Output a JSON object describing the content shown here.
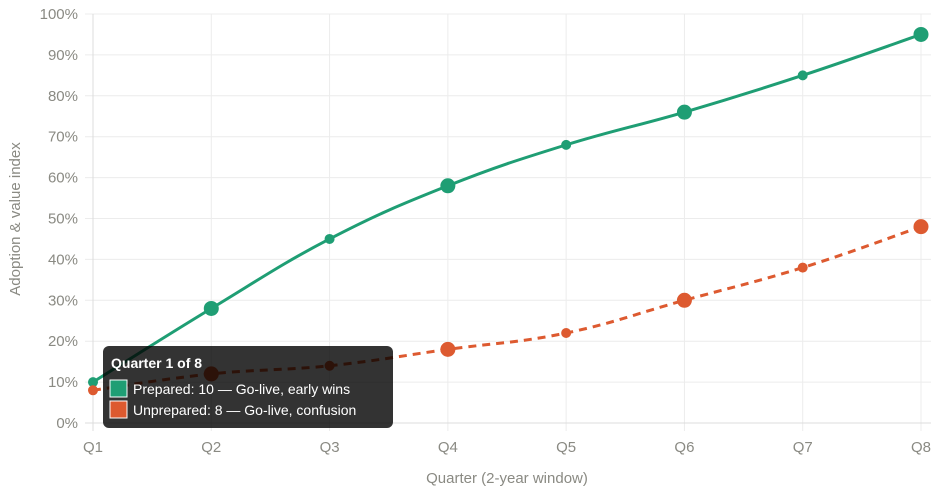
{
  "chart_data": {
    "type": "line",
    "xlabel": "Quarter (2-year window)",
    "ylabel": "Adoption & value index",
    "categories": [
      "Q1",
      "Q2",
      "Q3",
      "Q4",
      "Q5",
      "Q6",
      "Q7",
      "Q8"
    ],
    "ylim": [
      0,
      100
    ],
    "yticks": [
      "0%",
      "10%",
      "20%",
      "30%",
      "40%",
      "50%",
      "60%",
      "70%",
      "80%",
      "90%",
      "100%"
    ],
    "grid": true,
    "series": [
      {
        "name": "Prepared",
        "color": "#1f9e74",
        "dashed": false,
        "values": [
          10,
          28,
          45,
          58,
          68,
          76,
          85,
          95
        ]
      },
      {
        "name": "Unprepared",
        "color": "#dd5a30",
        "dashed": true,
        "values": [
          8,
          12,
          14,
          18,
          22,
          30,
          38,
          48
        ]
      }
    ],
    "tooltip": {
      "title": "Quarter 1 of 8",
      "lines": [
        "Prepared: 10 — Go-live, early wins",
        "Unprepared: 8 — Go-live, confusion"
      ]
    }
  }
}
